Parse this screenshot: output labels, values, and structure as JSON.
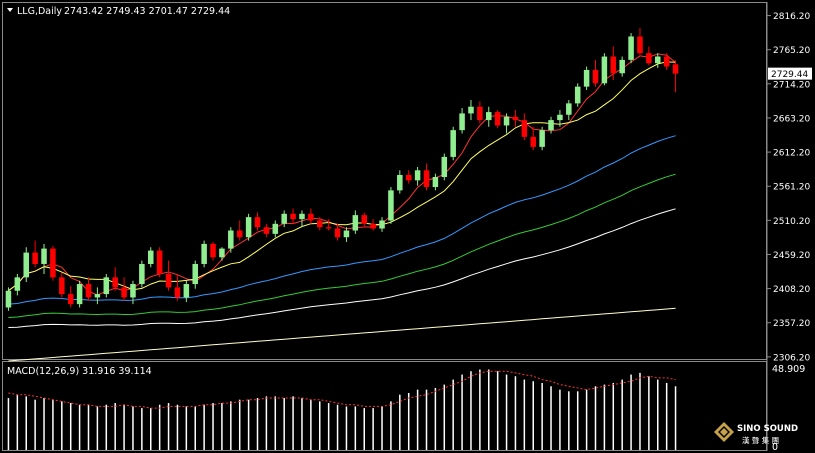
{
  "header": {
    "symbol": "LLG,Daily",
    "ohlc": "2743.42 2749.43 2701.47 2729.44",
    "arrow_icon": "triangle-down-icon"
  },
  "macd_panel": {
    "label": "MACD(12,26,9) 31.916 39.114",
    "top_value": "48.909",
    "bottom_value": "0"
  },
  "watermark": {
    "brand": "SINO SOUND",
    "cn": "漢 聲 集 團"
  },
  "colors": {
    "background": "#000000",
    "bull": "#90EE90",
    "bear": "#FF0000",
    "ma_fast": "#FF3333",
    "ma_slow": "#FFFF66",
    "ma_blue": "#3399FF",
    "ma_green": "#33CC33",
    "ma_white": "#FFFFFF",
    "ma_long": "#FFFFCC",
    "macd_hist": "#FFFFFF",
    "macd_signal": "#FF3333",
    "price_tag_bg": "#FFFFFF"
  },
  "chart_data": {
    "type": "candlestick",
    "price_axis": {
      "ticks": [
        "2816.20",
        "2765.20",
        "2714.20",
        "2663.20",
        "2612.20",
        "2561.20",
        "2510.20",
        "2459.20",
        "2408.20",
        "2357.20",
        "2306.20"
      ],
      "range": [
        2303,
        2835
      ],
      "current_price": "2729.44"
    },
    "candles": [
      [
        2380,
        2410,
        2375,
        2405
      ],
      [
        2405,
        2430,
        2398,
        2425
      ],
      [
        2425,
        2470,
        2418,
        2462
      ],
      [
        2462,
        2480,
        2440,
        2445
      ],
      [
        2445,
        2475,
        2430,
        2468
      ],
      [
        2468,
        2472,
        2420,
        2425
      ],
      [
        2425,
        2432,
        2395,
        2400
      ],
      [
        2400,
        2412,
        2380,
        2385
      ],
      [
        2385,
        2420,
        2380,
        2415
      ],
      [
        2415,
        2425,
        2390,
        2395
      ],
      [
        2395,
        2410,
        2385,
        2400
      ],
      [
        2400,
        2430,
        2395,
        2425
      ],
      [
        2425,
        2440,
        2405,
        2410
      ],
      [
        2410,
        2425,
        2390,
        2395
      ],
      [
        2395,
        2420,
        2385,
        2415
      ],
      [
        2415,
        2450,
        2410,
        2445
      ],
      [
        2445,
        2470,
        2440,
        2465
      ],
      [
        2465,
        2470,
        2425,
        2430
      ],
      [
        2430,
        2450,
        2405,
        2410
      ],
      [
        2410,
        2430,
        2390,
        2395
      ],
      [
        2395,
        2420,
        2388,
        2415
      ],
      [
        2415,
        2450,
        2408,
        2445
      ],
      [
        2445,
        2480,
        2440,
        2475
      ],
      [
        2475,
        2478,
        2450,
        2455
      ],
      [
        2455,
        2470,
        2450,
        2468
      ],
      [
        2468,
        2500,
        2462,
        2495
      ],
      [
        2495,
        2510,
        2480,
        2485
      ],
      [
        2485,
        2520,
        2480,
        2515
      ],
      [
        2515,
        2522,
        2495,
        2500
      ],
      [
        2500,
        2505,
        2485,
        2490
      ],
      [
        2490,
        2510,
        2485,
        2505
      ],
      [
        2505,
        2525,
        2500,
        2520
      ],
      [
        2520,
        2528,
        2505,
        2512
      ],
      [
        2512,
        2525,
        2500,
        2520
      ],
      [
        2520,
        2528,
        2505,
        2510
      ],
      [
        2510,
        2515,
        2495,
        2500
      ],
      [
        2500,
        2512,
        2495,
        2498
      ],
      [
        2498,
        2505,
        2480,
        2485
      ],
      [
        2485,
        2500,
        2478,
        2495
      ],
      [
        2495,
        2525,
        2490,
        2518
      ],
      [
        2518,
        2522,
        2500,
        2505
      ],
      [
        2505,
        2512,
        2495,
        2498
      ],
      [
        2498,
        2515,
        2493,
        2510
      ],
      [
        2510,
        2560,
        2505,
        2555
      ],
      [
        2555,
        2585,
        2550,
        2578
      ],
      [
        2578,
        2585,
        2565,
        2570
      ],
      [
        2570,
        2590,
        2562,
        2585
      ],
      [
        2585,
        2595,
        2555,
        2560
      ],
      [
        2560,
        2580,
        2555,
        2575
      ],
      [
        2575,
        2610,
        2570,
        2605
      ],
      [
        2605,
        2650,
        2600,
        2645
      ],
      [
        2645,
        2678,
        2640,
        2670
      ],
      [
        2670,
        2690,
        2660,
        2680
      ],
      [
        2680,
        2688,
        2655,
        2660
      ],
      [
        2660,
        2680,
        2650,
        2672
      ],
      [
        2672,
        2675,
        2648,
        2652
      ],
      [
        2652,
        2670,
        2640,
        2665
      ],
      [
        2665,
        2675,
        2650,
        2660
      ],
      [
        2660,
        2670,
        2630,
        2635
      ],
      [
        2635,
        2650,
        2615,
        2620
      ],
      [
        2620,
        2650,
        2615,
        2645
      ],
      [
        2645,
        2665,
        2640,
        2660
      ],
      [
        2660,
        2675,
        2650,
        2668
      ],
      [
        2668,
        2690,
        2660,
        2685
      ],
      [
        2685,
        2715,
        2680,
        2710
      ],
      [
        2710,
        2740,
        2705,
        2735
      ],
      [
        2735,
        2750,
        2710,
        2715
      ],
      [
        2715,
        2760,
        2712,
        2755
      ],
      [
        2755,
        2770,
        2720,
        2730
      ],
      [
        2730,
        2755,
        2725,
        2750
      ],
      [
        2750,
        2790,
        2745,
        2785
      ],
      [
        2785,
        2798,
        2755,
        2760
      ],
      [
        2760,
        2770,
        2742,
        2745
      ],
      [
        2745,
        2760,
        2738,
        2755
      ],
      [
        2755,
        2760,
        2735,
        2740
      ],
      [
        2743.42,
        2749.43,
        2701.47,
        2729.44
      ]
    ],
    "macd": {
      "range": [
        0,
        48.909
      ],
      "histogram": [
        31,
        33,
        32,
        30,
        31,
        30,
        29,
        28,
        27,
        27,
        26,
        27,
        28,
        27,
        26,
        25,
        25,
        27,
        28,
        27,
        26,
        26,
        27,
        28,
        28,
        29,
        30,
        30,
        31,
        32,
        32,
        31,
        32,
        31,
        30,
        29,
        28,
        27,
        26,
        26,
        25,
        25,
        26,
        29,
        33,
        34,
        36,
        36,
        37,
        39,
        42,
        45,
        47,
        48,
        48,
        47,
        45,
        44,
        42,
        41,
        40,
        38,
        36,
        35,
        35,
        36,
        38,
        39,
        40,
        42,
        45,
        46,
        44,
        42,
        40,
        38
      ],
      "signal": [
        34,
        33,
        33,
        32,
        31,
        30,
        29,
        28,
        27,
        27,
        26,
        26,
        26,
        27,
        26,
        26,
        25,
        25,
        26,
        26,
        26,
        26,
        27,
        27,
        28,
        28,
        29,
        30,
        30,
        31,
        31,
        31,
        31,
        31,
        30,
        30,
        29,
        28,
        27,
        27,
        26,
        26,
        26,
        27,
        29,
        31,
        32,
        33,
        35,
        37,
        39,
        41,
        44,
        46,
        47,
        47,
        47,
        46,
        45,
        44,
        42,
        41,
        39,
        38,
        37,
        36,
        37,
        38,
        39,
        40,
        41,
        43,
        44,
        43,
        43,
        42
      ]
    }
  }
}
